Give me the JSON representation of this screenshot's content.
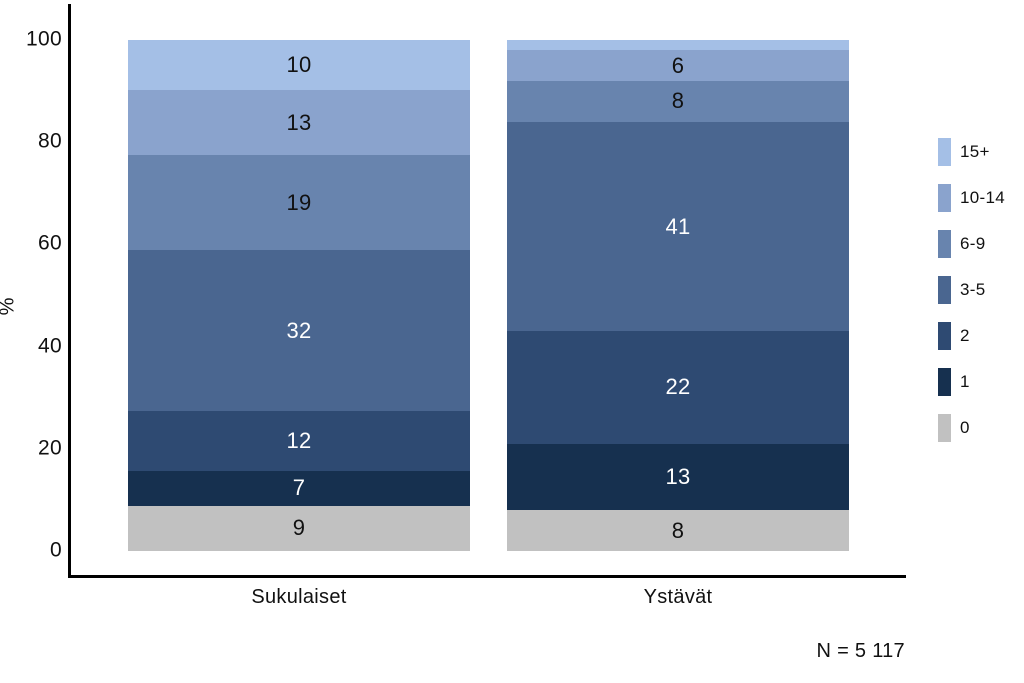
{
  "chart_data": {
    "type": "bar",
    "subtype": "stacked-percentage",
    "categories": [
      "Sukulaiset",
      "Ystävät"
    ],
    "ylabel": "%",
    "ylim": [
      0,
      100
    ],
    "yticks": [
      0,
      20,
      40,
      60,
      80,
      100
    ],
    "grid": false,
    "legend_position": "right",
    "note": "N = 5 117",
    "series": [
      {
        "name": "15+",
        "color": "#a4bfe6",
        "text_color": "#111111",
        "values": [
          10,
          2
        ],
        "labels_visible": [
          true,
          false
        ]
      },
      {
        "name": "10-14",
        "color": "#8aa3cd",
        "text_color": "#111111",
        "values": [
          13,
          6
        ],
        "labels_visible": [
          true,
          true
        ]
      },
      {
        "name": "6-9",
        "color": "#6884ae",
        "text_color": "#111111",
        "values": [
          19,
          8
        ],
        "labels_visible": [
          true,
          true
        ]
      },
      {
        "name": "3-5",
        "color": "#4a6690",
        "text_color": "#ffffff",
        "values": [
          32,
          41
        ],
        "labels_visible": [
          true,
          true
        ]
      },
      {
        "name": "2",
        "color": "#2e4a72",
        "text_color": "#ffffff",
        "values": [
          12,
          22
        ],
        "labels_visible": [
          true,
          true
        ]
      },
      {
        "name": "1",
        "color": "#16304f",
        "text_color": "#ffffff",
        "values": [
          7,
          13
        ],
        "labels_visible": [
          true,
          true
        ]
      },
      {
        "name": "0",
        "color": "#c1c1c1",
        "text_color": "#111111",
        "values": [
          9,
          8
        ],
        "labels_visible": [
          true,
          true
        ]
      }
    ]
  }
}
